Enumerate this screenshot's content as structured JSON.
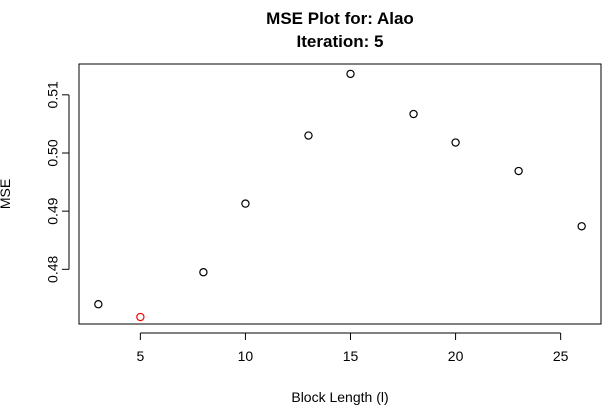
{
  "chart_data": {
    "type": "scatter",
    "title": [
      "MSE Plot for: Alao",
      "Iteration: 5"
    ],
    "xlabel": "Block Length (l)",
    "ylabel": "MSE",
    "xlim": [
      2.08,
      26.92
    ],
    "ylim": [
      0.4706,
      0.5153
    ],
    "xticks": [
      5,
      10,
      15,
      20,
      25
    ],
    "yticks": [
      0.48,
      0.49,
      0.5,
      0.51
    ],
    "xtick_labels": [
      "5",
      "10",
      "15",
      "20",
      "25"
    ],
    "ytick_labels": [
      "0.48",
      "0.49",
      "0.50",
      "0.51"
    ],
    "grid": false,
    "points": [
      {
        "x": 3,
        "y": 0.474,
        "color": "#000000"
      },
      {
        "x": 5,
        "y": 0.4718,
        "color": "#ff0000"
      },
      {
        "x": 8,
        "y": 0.4795,
        "color": "#000000"
      },
      {
        "x": 10,
        "y": 0.4913,
        "color": "#000000"
      },
      {
        "x": 13,
        "y": 0.503,
        "color": "#000000"
      },
      {
        "x": 15,
        "y": 0.5136,
        "color": "#000000"
      },
      {
        "x": 18,
        "y": 0.5067,
        "color": "#000000"
      },
      {
        "x": 20,
        "y": 0.5018,
        "color": "#000000"
      },
      {
        "x": 23,
        "y": 0.4969,
        "color": "#000000"
      },
      {
        "x": 26,
        "y": 0.4874,
        "color": "#000000"
      }
    ]
  }
}
